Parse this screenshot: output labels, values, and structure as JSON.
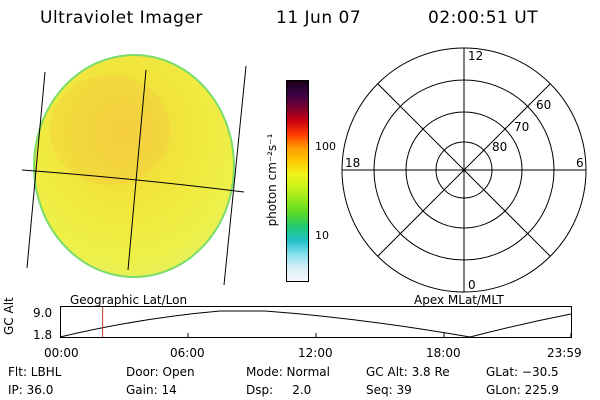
{
  "header": {
    "instrument": "Ultraviolet Imager",
    "date": "11 Jun 07",
    "time": "02:00:51 UT"
  },
  "colorbar": {
    "unit_label": "photon cm⁻²s⁻¹",
    "ticks": [
      "100",
      "10"
    ],
    "colors_top_to_bottom": [
      "#1b0018",
      "#3a0045",
      "#7a0030",
      "#c80010",
      "#ff3a00",
      "#ff9a00",
      "#ffc800",
      "#f2f21a",
      "#c8f21a",
      "#90e81a",
      "#52d82a",
      "#20c878",
      "#22c0c8",
      "#86e0ee",
      "#d8f0f8",
      "#f4f8fc"
    ]
  },
  "projection_labels": {
    "left": "Geographic Lat/Lon",
    "right": "Apex MLat/MLT"
  },
  "polar_plot": {
    "mlt_labels": [
      "12",
      "18",
      "6",
      "0"
    ],
    "lat_labels": [
      "60",
      "70",
      "80"
    ]
  },
  "orbit_plot": {
    "ylabel": "GC Alt",
    "y_ticks": [
      "9.0",
      "1.8"
    ],
    "x_ticks": [
      "00:00",
      "06:00",
      "12:00",
      "18:00",
      "23:59"
    ],
    "current_time_fraction": 0.0834
  },
  "info": {
    "flt": "Flt: LBHL",
    "ip": "IP: 36.0",
    "door": "Door: Open",
    "gain": "Gain: 14",
    "mode": "Mode: Normal",
    "dsp": "Dsp:     2.0",
    "gcalt": "GC Alt: 3.8 Re",
    "seq": "Seq: 39",
    "glat": "GLat: −30.5",
    "glon": "GLon: 225.9"
  },
  "colors": {
    "disk": "#f0ee40",
    "disk_edge": "#7cdc6a",
    "orbit_marker": "#c0392b"
  }
}
